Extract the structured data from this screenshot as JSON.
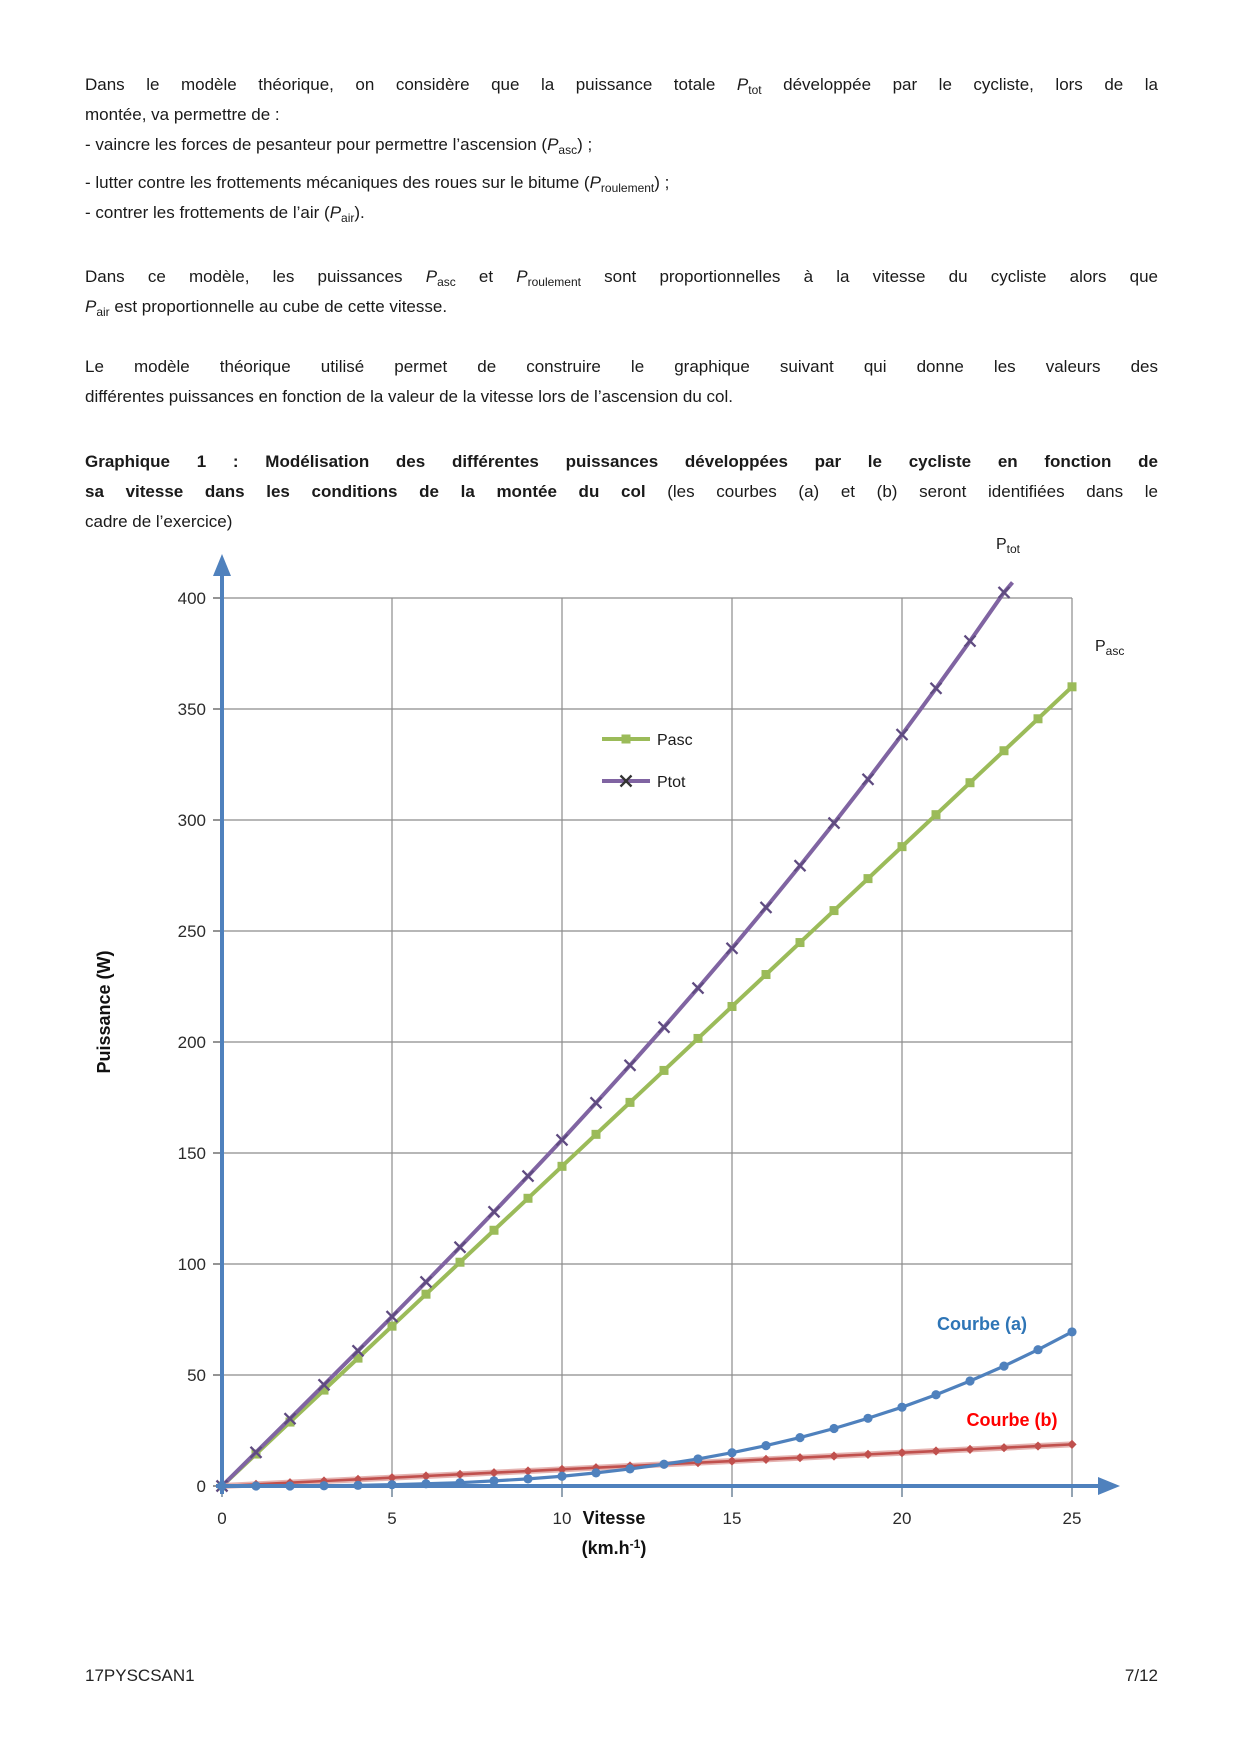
{
  "paragraph1": {
    "lines": [
      {
        "just": true,
        "seg": [
          {
            "t": "Dans le modèle théorique, on considère que la puissance totale "
          },
          {
            "t": "P",
            "s": "i"
          },
          {
            "t": "tot",
            "s": "sub"
          },
          {
            "t": " développée par le cycliste, lors de la"
          }
        ]
      },
      {
        "seg": [
          {
            "t": "montée, va permettre de :"
          }
        ]
      },
      {
        "seg": [
          {
            "t": "- vaincre les forces de pesanteur pour permettre l’ascension ("
          },
          {
            "t": "P",
            "s": "i"
          },
          {
            "t": "asc",
            "s": "sub"
          },
          {
            "t": ") ;"
          }
        ]
      },
      {
        "cls": "gap-top",
        "seg": [
          {
            "t": "- lutter contre les frottements mécaniques des roues sur le bitume ("
          },
          {
            "t": "P",
            "s": "i"
          },
          {
            "t": "roulement",
            "s": "sub"
          },
          {
            "t": ") ;"
          }
        ]
      },
      {
        "seg": [
          {
            "t": "- contrer les frottements de l’air ("
          },
          {
            "t": "P",
            "s": "i"
          },
          {
            "t": "air",
            "s": "sub"
          },
          {
            "t": ")."
          }
        ]
      }
    ]
  },
  "paragraph2": {
    "lines": [
      {
        "just": true,
        "seg": [
          {
            "t": "Dans ce modèle, les puissances "
          },
          {
            "t": "P",
            "s": "i"
          },
          {
            "t": "asc",
            "s": "sub"
          },
          {
            "t": " et "
          },
          {
            "t": "P",
            "s": "i"
          },
          {
            "t": "roulement",
            "s": "sub"
          },
          {
            "t": " sont proportionnelles à la vitesse du cycliste alors que"
          }
        ]
      },
      {
        "seg": [
          {
            "t": "P",
            "s": "i"
          },
          {
            "t": "air",
            "s": "sub"
          },
          {
            "t": " est proportionnelle au cube de cette vitesse."
          }
        ]
      }
    ]
  },
  "paragraph3": {
    "lines": [
      {
        "just": true,
        "seg": [
          {
            "t": "Le modèle théorique utilisé permet de construire le graphique suivant qui donne les valeurs des"
          }
        ]
      },
      {
        "seg": [
          {
            "t": "différentes puissances en fonction de la valeur de la vitesse lors de l’ascension du col."
          }
        ]
      }
    ]
  },
  "heading": {
    "lines": [
      {
        "just": true,
        "seg": [
          {
            "t": "Graphique 1 : Modélisation des différentes puissances développées par le cycliste en fonction de",
            "s": "b"
          }
        ]
      },
      {
        "just": true,
        "seg": [
          {
            "t": "sa vitesse dans les conditions de la montée du col ",
            "s": "b"
          },
          {
            "t": "(les courbes (a) et (b) seront identifiées dans le"
          }
        ]
      },
      {
        "seg": [
          {
            "t": "cadre de l’exercice)"
          }
        ]
      }
    ]
  },
  "chart_data": {
    "type": "line",
    "title": "",
    "ylabel": "Puissance (W)",
    "xlabel_line1": "Vitesse",
    "xlabel_line2_seg": [
      {
        "t": "(km.h"
      },
      {
        "t": "-1",
        "s": "sup"
      },
      {
        "t": ")"
      }
    ],
    "x_ticks": [
      0,
      5,
      10,
      15,
      20,
      25
    ],
    "y_ticks": [
      0,
      50,
      100,
      150,
      200,
      250,
      300,
      350,
      400
    ],
    "xlim": [
      0,
      25
    ],
    "ylim": [
      0,
      400
    ],
    "grid": true,
    "legend_position": "upper-center",
    "axis_color": "#4F81BD",
    "grid_color": "#8c8c8c",
    "tick_label_color": "#2b2b2b",
    "x": [
      0,
      1,
      2,
      3,
      4,
      5,
      6,
      7,
      8,
      9,
      10,
      11,
      12,
      13,
      14,
      15,
      16,
      17,
      18,
      19,
      20,
      21,
      22,
      23,
      24,
      25
    ],
    "series": [
      {
        "name": "Pasc",
        "color": "#9BBB59",
        "marker": "square",
        "line_width": 4,
        "values": [
          0,
          14.4,
          28.8,
          43.2,
          57.6,
          72,
          86.4,
          100.8,
          115.2,
          129.6,
          144,
          158.4,
          172.8,
          187.2,
          201.6,
          216,
          230.4,
          244.8,
          259.2,
          273.6,
          288,
          302.4,
          316.8,
          331.2,
          345.6,
          360
        ]
      },
      {
        "name": "Ptot",
        "color": "#8064A2",
        "marker": "xcross",
        "marker_color": "#5f4b80",
        "line_width": 4,
        "x": [
          0,
          1,
          2,
          3,
          4,
          5,
          6,
          7,
          8,
          9,
          10,
          11,
          12,
          13,
          14,
          15,
          16,
          17,
          18,
          19,
          20,
          21,
          22,
          23
        ],
        "values": [
          0,
          15.2,
          30.3,
          45.6,
          60.9,
          76.3,
          91.9,
          107.6,
          123.5,
          139.6,
          155.9,
          172.6,
          189.5,
          206.7,
          224.3,
          242.2,
          260.6,
          279.4,
          298.6,
          318.3,
          338.5,
          359.3,
          380.6,
          402.5
        ],
        "line_end": [
          23.25,
          407
        ]
      },
      {
        "name": "Courbe (b)",
        "color": "#C0504D",
        "marker": "diamond",
        "halo": "#dfa09d",
        "line_width": 2.6,
        "values": [
          0,
          0.75,
          1.5,
          2.25,
          3,
          3.75,
          4.5,
          5.25,
          6,
          6.75,
          7.5,
          8.25,
          9,
          9.75,
          10.5,
          11.25,
          12,
          12.75,
          13.5,
          14.25,
          15,
          15.75,
          16.5,
          17.25,
          18,
          18.75
        ]
      },
      {
        "name": "Courbe (a)",
        "color": "#4F81BD",
        "marker": "circle",
        "line_width": 3.2,
        "values": [
          0,
          0,
          0,
          0.1,
          0.3,
          0.6,
          1,
          1.5,
          2.3,
          3.2,
          4.4,
          5.9,
          7.7,
          9.8,
          12.2,
          15,
          18.2,
          21.8,
          25.9,
          30.5,
          35.5,
          41.1,
          47.3,
          54,
          61.4,
          69.4
        ]
      }
    ],
    "legend": [
      {
        "label": "Pasc",
        "series": 0,
        "marker_color": "#9BBB59"
      },
      {
        "label": "Ptot",
        "series": 1,
        "marker_color": "#333333"
      }
    ],
    "annotations": {
      "ptot_seg": [
        {
          "t": "P"
        },
        {
          "t": "tot",
          "s": "sub"
        }
      ],
      "pasc_seg": [
        {
          "t": "P"
        },
        {
          "t": "asc",
          "s": "sub"
        }
      ],
      "courbe_a": "Courbe (a)",
      "courbe_a_color": "#2E75B6",
      "courbe_b": "Courbe (b)",
      "courbe_b_color": "#FF0000"
    }
  },
  "footer": {
    "left": "17PYSCSAN1",
    "right": "7/12"
  }
}
